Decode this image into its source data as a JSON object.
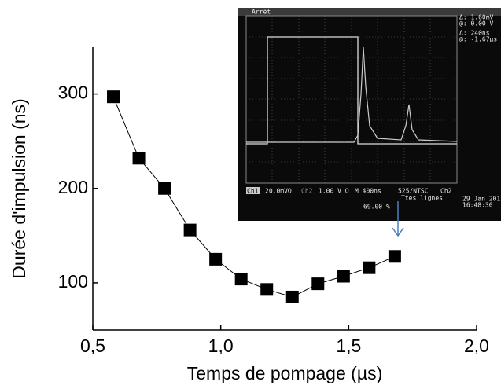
{
  "chart_data": {
    "type": "line",
    "x_label": "Temps de pompage (µs)",
    "y_label": "Durée d'impulsion (ns)",
    "series": [
      {
        "name": "Durée",
        "color": "#000000",
        "x": [
          0.58,
          0.68,
          0.78,
          0.88,
          0.98,
          1.08,
          1.18,
          1.28,
          1.38,
          1.48,
          1.58,
          1.68
        ],
        "values": [
          297,
          232,
          200,
          156,
          125,
          104,
          93,
          85,
          99,
          107,
          116,
          128
        ]
      }
    ],
    "xlim": [
      0.5,
      2.0
    ],
    "ylim": [
      50,
      350
    ],
    "xticks": [
      {
        "value": 0.5,
        "label": "0,5"
      },
      {
        "value": 1.0,
        "label": "1,0"
      },
      {
        "value": 1.5,
        "label": "1,5"
      },
      {
        "value": 2.0,
        "label": "2,0"
      }
    ],
    "yticks": [
      100,
      200,
      300
    ]
  },
  "inset": {
    "status": "Arrêt",
    "ch1": "Ch1",
    "ch1_scale": "20.0mVΩ",
    "ch2": "Ch2",
    "ch2_scale": "1.00 V Ω",
    "timebase": "M 400ns",
    "mode": "525/NTSC",
    "trigger_ch": "Ch2",
    "lines": "Ttes lignes",
    "percent": "69.00 %",
    "date": "29 Jan 201",
    "time": "16:48:30",
    "cursor1_delta": "Δ:  1.60mV",
    "cursor1_at": "@:  0.00 V",
    "cursor2_delta": "Δ:   240ns",
    "cursor2_at": "@: -1.67µs"
  }
}
